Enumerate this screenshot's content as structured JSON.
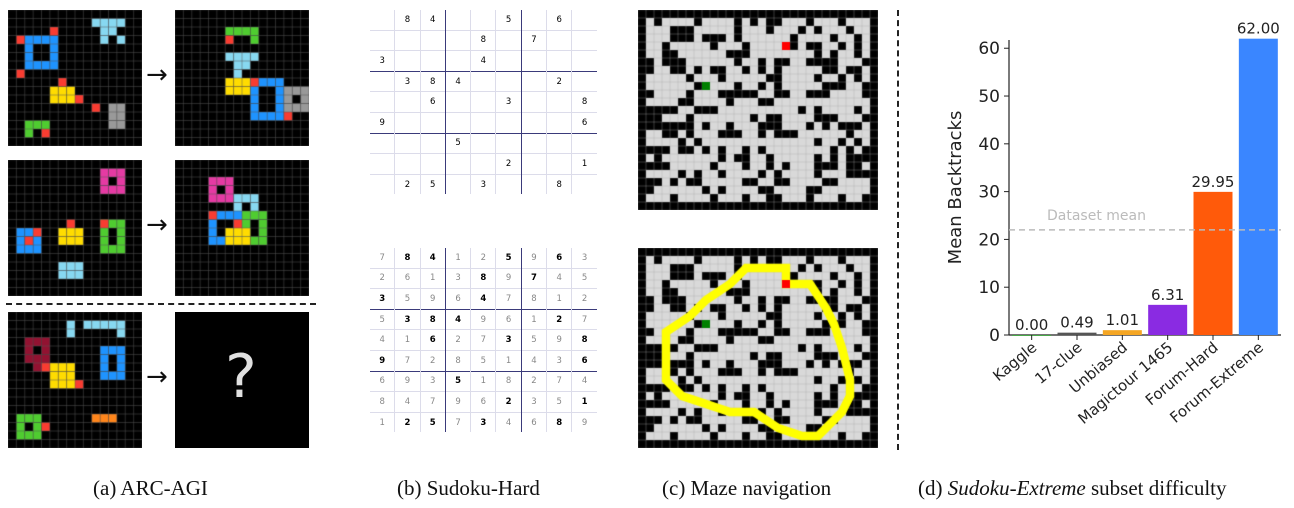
{
  "arrow": "→",
  "question_mark": "?",
  "captions": {
    "a": "(a) ARC-AGI",
    "b": "(b) Sudoku-Hard",
    "c": "(c) Maze navigation",
    "d_italic": "Sudoku-Extreme",
    "d_pre": "(d) ",
    "d_post": " subset difficulty"
  },
  "sudoku_puzzle": [
    [
      "",
      "8",
      "4",
      "",
      "",
      "5",
      "",
      "6",
      ""
    ],
    [
      "",
      "",
      "",
      "",
      "8",
      "",
      "7",
      "",
      ""
    ],
    [
      "3",
      "",
      "",
      "",
      "4",
      "",
      "",
      "",
      ""
    ],
    [
      "",
      "3",
      "8",
      "4",
      "",
      "",
      "",
      "2",
      ""
    ],
    [
      "",
      "",
      "6",
      "",
      "",
      "3",
      "",
      "",
      "8"
    ],
    [
      "9",
      "",
      "",
      "",
      "",
      "",
      "",
      "",
      "6"
    ],
    [
      "",
      "",
      "",
      "5",
      "",
      "",
      "",
      "",
      ""
    ],
    [
      "",
      "",
      "",
      "",
      "",
      "2",
      "",
      "",
      "1"
    ],
    [
      "",
      "2",
      "5",
      "",
      "3",
      "",
      "",
      "8",
      ""
    ]
  ],
  "sudoku_solution": [
    [
      "7",
      "8",
      "4",
      "1",
      "2",
      "5",
      "9",
      "6",
      "3"
    ],
    [
      "2",
      "6",
      "1",
      "3",
      "8",
      "9",
      "7",
      "4",
      "5"
    ],
    [
      "3",
      "5",
      "9",
      "6",
      "4",
      "7",
      "8",
      "1",
      "2"
    ],
    [
      "5",
      "3",
      "8",
      "4",
      "9",
      "6",
      "1",
      "2",
      "7"
    ],
    [
      "4",
      "1",
      "6",
      "2",
      "7",
      "3",
      "5",
      "9",
      "8"
    ],
    [
      "9",
      "7",
      "2",
      "8",
      "5",
      "1",
      "4",
      "3",
      "6"
    ],
    [
      "6",
      "9",
      "3",
      "5",
      "1",
      "8",
      "2",
      "7",
      "4"
    ],
    [
      "8",
      "4",
      "7",
      "9",
      "6",
      "2",
      "3",
      "5",
      "1"
    ],
    [
      "1",
      "2",
      "5",
      "7",
      "3",
      "4",
      "6",
      "8",
      "9"
    ]
  ],
  "colors": {
    "blue": "#1e93ff",
    "red": "#f93c31",
    "yellow": "#ffdc00",
    "green": "#4fcc30",
    "gray": "#999999",
    "cyan": "#87d8f1",
    "magenta": "#e53aa3",
    "maroon": "#921231",
    "orange": "#ff851b",
    "maze_wall": "#000000",
    "maze_open": "#d9d9d9",
    "maze_path": "#ffff00",
    "maze_start": "#ff0000",
    "maze_goal": "#008000",
    "sudoku_given_bold": "#000000",
    "sudoku_filled": "#888888",
    "sudoku_line": "#3a3a7a"
  },
  "chart_data": {
    "type": "bar",
    "categories": [
      "Kaggle",
      "17-clue",
      "Unbiased",
      "Magictour 1465",
      "Forum-Hard",
      "Forum-Extreme"
    ],
    "values": [
      0.0,
      0.49,
      1.01,
      6.31,
      29.95,
      62.0
    ],
    "value_labels": [
      "0.00",
      "0.49",
      "1.01",
      "6.31",
      "29.95",
      "62.00"
    ],
    "colors": [
      "#2ca02c",
      "#555555",
      "#f5a623",
      "#8a2be2",
      "#ff5a0a",
      "#3a86ff"
    ],
    "ylabel": "Mean Backtracks",
    "ylim": [
      0,
      68
    ],
    "yticks": [
      0,
      10,
      20,
      30,
      40,
      50,
      60
    ],
    "reference_line": {
      "label": "Dataset mean",
      "value": 22
    }
  }
}
